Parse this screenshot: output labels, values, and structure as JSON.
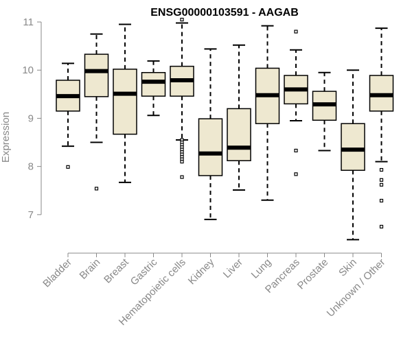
{
  "chart_data": {
    "type": "boxplot",
    "title": "ENSG00000103591 - AAGAB",
    "xlabel": "",
    "ylabel": "Expression",
    "ylim": [
      6.3,
      11.2
    ],
    "yticks": [
      7,
      8,
      9,
      10,
      11
    ],
    "grid": false,
    "box_fill": "#EEE8D0",
    "categories": [
      "Bladder",
      "Brain",
      "Breast",
      "Gastric",
      "Hematopoietic cells",
      "Kidney",
      "Liver",
      "Lung",
      "Pancreas",
      "Prostate",
      "Skin",
      "Unknown / Other"
    ],
    "boxes": [
      {
        "whisker_low": 8.42,
        "q1": 9.15,
        "median": 9.46,
        "q3": 9.79,
        "whisker_high": 10.14,
        "outliers": [
          7.99
        ]
      },
      {
        "whisker_low": 8.5,
        "q1": 9.45,
        "median": 9.98,
        "q3": 10.33,
        "whisker_high": 10.75,
        "outliers": [
          7.54
        ]
      },
      {
        "whisker_low": 7.67,
        "q1": 8.67,
        "median": 9.51,
        "q3": 10.02,
        "whisker_high": 10.95,
        "outliers": []
      },
      {
        "whisker_low": 9.06,
        "q1": 9.46,
        "median": 9.76,
        "q3": 9.95,
        "whisker_high": 10.19,
        "outliers": []
      },
      {
        "whisker_low": 8.55,
        "q1": 9.46,
        "median": 9.79,
        "q3": 10.08,
        "whisker_high": 10.98,
        "outliers": [
          11.05,
          8.55,
          8.5,
          8.45,
          8.4,
          8.35,
          8.3,
          8.25,
          8.2,
          8.15,
          8.1,
          7.78
        ]
      },
      {
        "whisker_low": 6.9,
        "q1": 7.81,
        "median": 8.27,
        "q3": 8.99,
        "whisker_high": 10.44,
        "outliers": []
      },
      {
        "whisker_low": 7.51,
        "q1": 8.12,
        "median": 8.39,
        "q3": 9.2,
        "whisker_high": 10.52,
        "outliers": []
      },
      {
        "whisker_low": 7.3,
        "q1": 8.89,
        "median": 9.48,
        "q3": 10.04,
        "whisker_high": 10.92,
        "outliers": []
      },
      {
        "whisker_low": 8.95,
        "q1": 9.3,
        "median": 9.6,
        "q3": 9.89,
        "whisker_high": 10.42,
        "outliers": [
          10.8,
          8.33,
          7.84
        ]
      },
      {
        "whisker_low": 8.33,
        "q1": 8.96,
        "median": 9.29,
        "q3": 9.56,
        "whisker_high": 9.95,
        "outliers": []
      },
      {
        "whisker_low": 6.48,
        "q1": 7.92,
        "median": 8.35,
        "q3": 8.89,
        "whisker_high": 10.0,
        "outliers": []
      },
      {
        "whisker_low": 8.1,
        "q1": 9.15,
        "median": 9.48,
        "q3": 9.89,
        "whisker_high": 10.87,
        "outliers": [
          7.93,
          7.72,
          7.62,
          7.29,
          6.75
        ]
      }
    ]
  }
}
